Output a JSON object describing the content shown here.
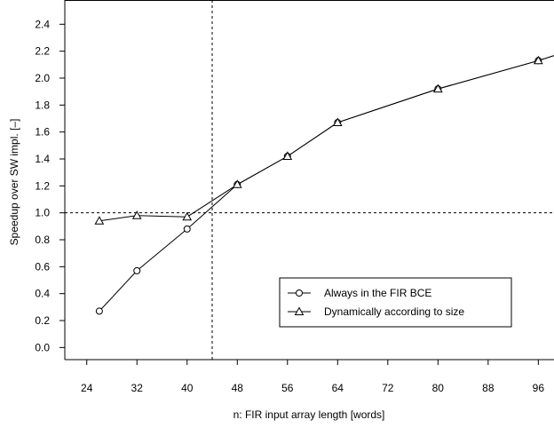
{
  "chart_data": {
    "type": "line",
    "xlabel": "n: FIR input array length [words]",
    "ylabel": "Speedup over SW impl. [–]",
    "xlim": [
      20.5,
      98.5
    ],
    "ylim": [
      -0.09,
      2.58
    ],
    "x_ticks": [
      24,
      32,
      40,
      48,
      56,
      64,
      72,
      80,
      88,
      96
    ],
    "y_ticks": [
      0.0,
      0.2,
      0.4,
      0.6,
      0.8,
      1.0,
      1.2,
      1.4,
      1.6,
      1.8,
      2.0,
      2.2,
      2.4
    ],
    "y_tick_labels": [
      "0.0",
      "0.2",
      "0.4",
      "0.6",
      "0.8",
      "1.0",
      "1.2",
      "1.4",
      "1.6",
      "1.8",
      "2.0",
      "2.2",
      "2.4"
    ],
    "reference_lines": {
      "horizontal": 1.0,
      "vertical": 44
    },
    "grid": false,
    "legend_position": "bottom-right",
    "series": [
      {
        "name": "Always in the FIR BCE",
        "marker": "circle",
        "x": [
          26,
          32,
          40,
          48,
          56,
          64,
          80,
          96,
          100
        ],
        "values": [
          0.27,
          0.57,
          0.88,
          1.21,
          1.42,
          1.67,
          1.92,
          2.13,
          2.19
        ]
      },
      {
        "name": "Dynamically according to size",
        "marker": "triangle",
        "x": [
          26,
          32,
          40,
          48,
          56,
          64,
          80,
          96,
          100
        ],
        "values": [
          0.94,
          0.98,
          0.97,
          1.21,
          1.42,
          1.67,
          1.92,
          2.13,
          2.19
        ]
      }
    ]
  }
}
